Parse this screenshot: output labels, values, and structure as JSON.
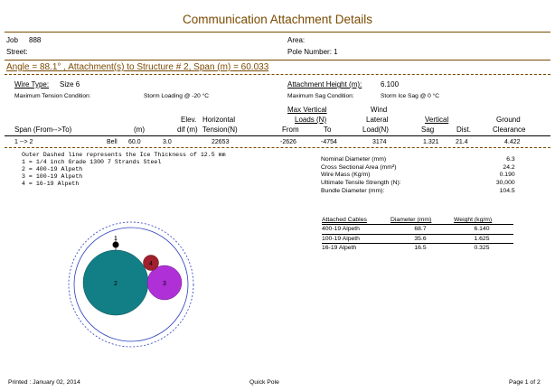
{
  "header": {
    "title": "Communication Attachment Details",
    "job_label": "Job",
    "job_value": "888",
    "street_label": "Street:",
    "area_label": "Area:",
    "pole_number": "Pole Number: 1"
  },
  "angle_line": "Angle = 88.1° , Attachment(s) to Structure # 2, Span (m) = 60.033",
  "wire": {
    "type_label": "Wire Type:",
    "type_value": "Size 6",
    "max_tension_label": "Maximum Tension Condition:",
    "max_tension_value": "Storm Loading @ -20 °C",
    "height_label": "Attachment Height (m):",
    "height_value": "6.100",
    "max_sag_label": "Maximum Sag Condition:",
    "max_sag_value": "Storm Ice Sag @ 0 °C"
  },
  "columns": {
    "span": "Span (From-->To)",
    "m": "(m)",
    "elev": "Elev.",
    "dif": "dif (m)",
    "horizontal": "Horizontal",
    "tension": "Tension(N)",
    "max_vertical": "Max Vertical",
    "loads": "Loads (N)",
    "from": "From",
    "to": "To",
    "wind": "Wind",
    "lateral": "Lateral",
    "load": "Load(N)",
    "vertical": "Vertical",
    "sag": "Sag",
    "dist": "Dist.",
    "ground": "Ground",
    "clearance": "Clearance"
  },
  "row": {
    "span": "1 --> 2",
    "type": "Bell",
    "m": "60.0",
    "dif": "3.0",
    "tension": "22653",
    "from": "-2626",
    "to": "-4754",
    "lateral": "3174",
    "sag": "1.321",
    "dist": "21.4",
    "clearance": "4.422"
  },
  "notes": [
    "Outer Dashed line represents the Ice Thickness of 12.5 mm",
    "1 = 1/4 inch Grade 1300 7 Strands  Steel",
    "2 = 400-19 Alpeth",
    "3 = 100-19 Alpeth",
    "4 = 16-19 Alpeth"
  ],
  "properties": [
    {
      "label": "Nominal Diameter (mm)",
      "value": "6.3"
    },
    {
      "label": "Cross Sectional Area (mm²)",
      "value": "24.2"
    },
    {
      "label": "Wire Mass (Kg/m)",
      "value": "0.190"
    },
    {
      "label": "Ultimate Tensile Strength (N):",
      "value": "30,000"
    },
    {
      "label": "Bundle Diameter (mm):",
      "value": "104.5"
    }
  ],
  "cables": {
    "headers": [
      "Attached Cables",
      "Diameter (mm)",
      "Weight (kg/m)"
    ],
    "rows": [
      {
        "name": "400-19 Alpeth",
        "diameter": "68.7",
        "weight": "6.140"
      },
      {
        "name": "100-19 Alpeth",
        "diameter": "35.6",
        "weight": "1.625"
      },
      {
        "name": "16-19 Alpeth",
        "diameter": "16.5",
        "weight": "0.325"
      }
    ]
  },
  "diagram": {
    "labels": [
      "1",
      "2",
      "3",
      "4"
    ],
    "colors": {
      "cable2": "#127f87",
      "cable3": "#b030d8",
      "cable4": "#a0202e",
      "messenger": "#000000",
      "ice_line": "#2a3fbf"
    }
  },
  "footer": {
    "printed": "Printed : January 02, 2014",
    "app": "Quick Pole",
    "page": "Page 1 of 2"
  }
}
